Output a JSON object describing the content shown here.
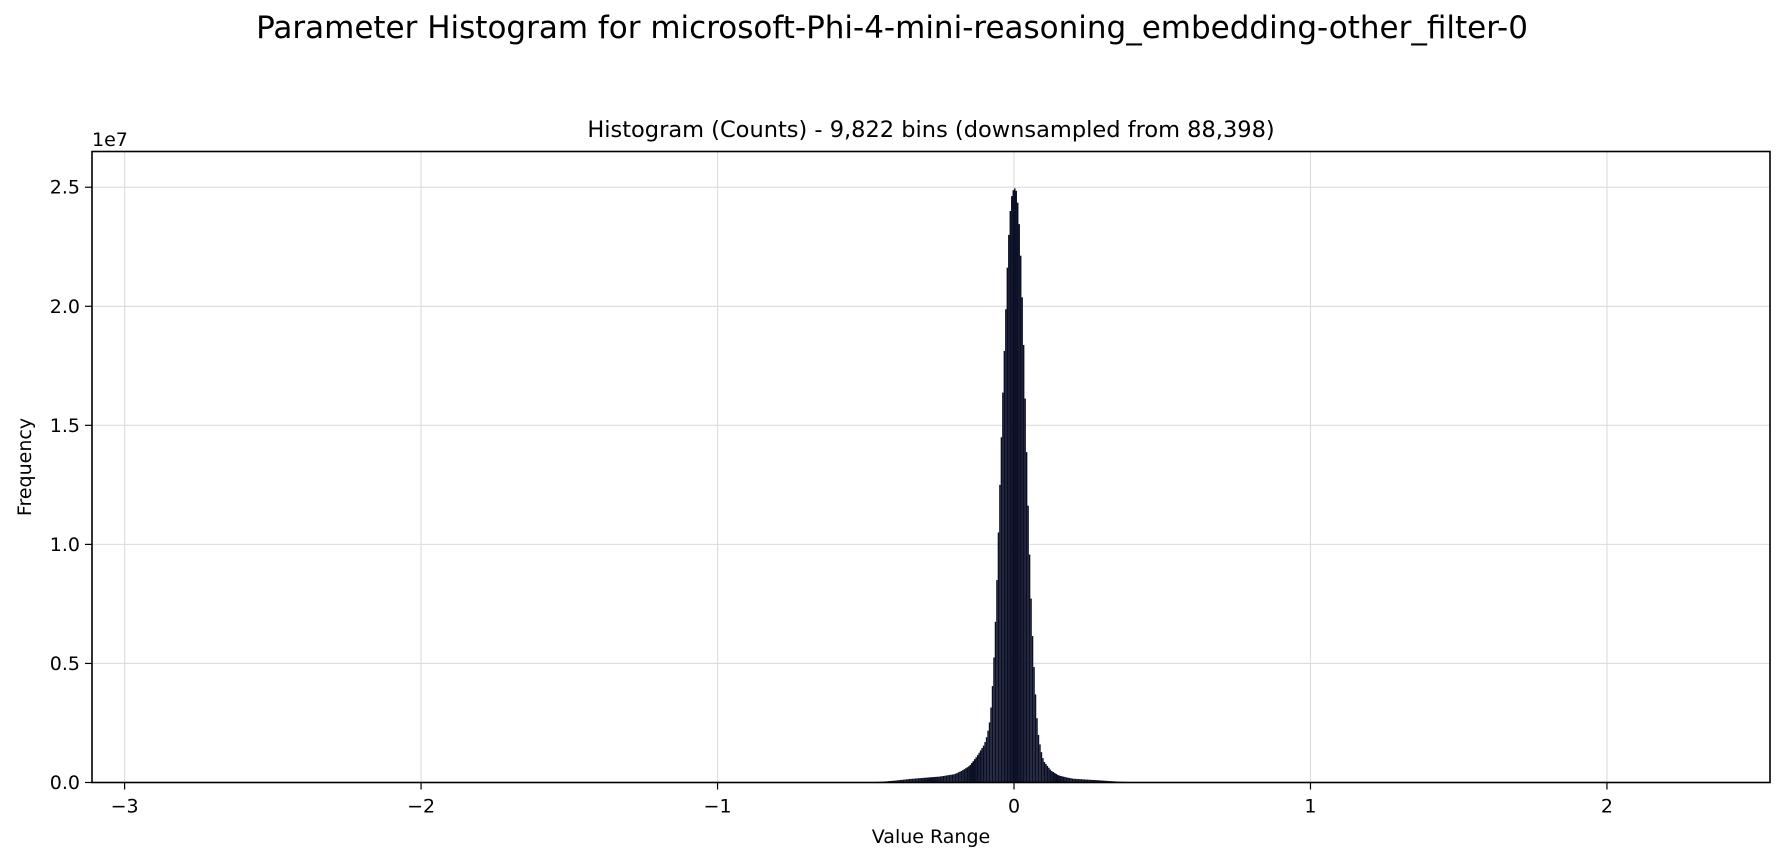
{
  "figure": {
    "suptitle": "Parameter Histogram for microsoft-Phi-4-mini-reasoning_embedding-other_filter-0"
  },
  "chart_data": {
    "type": "bar",
    "title": "Histogram (Counts) - 9,822 bins (downsampled from 88,398)",
    "xlabel": "Value Range",
    "ylabel": "Frequency",
    "y_offset_text": "1e7",
    "xlim": [
      -3.11,
      2.55
    ],
    "ylim": [
      0,
      26500000.0
    ],
    "x_ticks": [
      -3,
      -2,
      -1,
      0,
      1,
      2
    ],
    "x_tick_labels": [
      "−3",
      "−2",
      "−1",
      "0",
      "1",
      "2"
    ],
    "y_ticks": [
      0,
      5000000,
      10000000,
      15000000,
      20000000,
      25000000
    ],
    "y_tick_labels": [
      "0.0",
      "0.5",
      "1.0",
      "1.5",
      "2.0",
      "2.5"
    ],
    "grid": true,
    "bar_color": "#0b0f26",
    "bin_width": 0.005,
    "x": [
      -0.5,
      -0.45,
      -0.4,
      -0.35,
      -0.3,
      -0.25,
      -0.2,
      -0.175,
      -0.15,
      -0.125,
      -0.1,
      -0.09,
      -0.08,
      -0.07,
      -0.06,
      -0.05,
      -0.04,
      -0.03,
      -0.02,
      -0.01,
      0.0,
      0.01,
      0.02,
      0.03,
      0.04,
      0.05,
      0.06,
      0.07,
      0.08,
      0.09,
      0.1,
      0.125,
      0.15,
      0.175,
      0.2,
      0.25,
      0.3,
      0.35,
      0.4,
      0.45
    ],
    "values": [
      5000,
      30000,
      80000,
      150000,
      200000,
      250000,
      350000,
      500000,
      700000,
      1100000,
      1600000,
      2000000,
      2700000,
      4500000,
      7500000,
      11500000,
      15500000,
      19000000,
      22500000,
      24500000,
      25000000,
      24800000,
      23000000,
      19500000,
      15000000,
      10500000,
      6800000,
      4200000,
      2200000,
      1400000,
      900000,
      500000,
      300000,
      220000,
      160000,
      120000,
      80000,
      40000,
      10000,
      3000
    ]
  }
}
